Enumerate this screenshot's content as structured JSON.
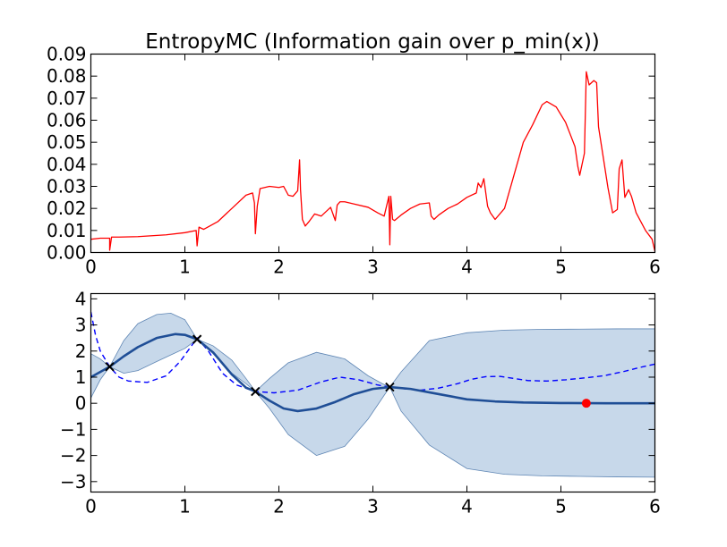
{
  "title": "EntropyMC (Information gain over p_min(x))",
  "colors": {
    "acquisition": "#ff0000",
    "mean": "#1f4e96",
    "band_fill": "#c7d8ea",
    "band_edge": "#5f86b4",
    "dashed": "#0000ff",
    "observation": "#000000",
    "next_point": "#ff0000"
  },
  "chart_data": [
    {
      "type": "line",
      "title": "EntropyMC (Information gain over p_min(x))",
      "xlabel": "",
      "ylabel": "",
      "xlim": [
        0,
        6
      ],
      "ylim": [
        0,
        0.09
      ],
      "xticks": [
        "0",
        "1",
        "2",
        "3",
        "4",
        "5",
        "6"
      ],
      "yticks": [
        "0.00",
        "0.01",
        "0.02",
        "0.03",
        "0.04",
        "0.05",
        "0.06",
        "0.07",
        "0.08",
        "0.09"
      ],
      "grid": false,
      "series": [
        {
          "x": [
            0.0,
            0.1,
            0.2,
            0.2,
            0.22,
            0.3,
            0.5,
            0.8,
            1.0,
            1.12,
            1.13,
            1.15,
            1.2,
            1.35,
            1.5,
            1.65,
            1.72,
            1.74,
            1.75,
            1.77,
            1.8,
            1.9,
            2.0,
            2.05,
            2.1,
            2.15,
            2.2,
            2.22,
            2.23,
            2.25,
            2.28,
            2.32,
            2.38,
            2.45,
            2.55,
            2.6,
            2.62,
            2.65,
            2.7,
            2.8,
            2.95,
            3.05,
            3.12,
            3.17,
            3.18,
            3.19,
            3.21,
            3.23,
            3.3,
            3.4,
            3.5,
            3.6,
            3.62,
            3.65,
            3.7,
            3.8,
            3.9,
            4.0,
            4.1,
            4.12,
            4.15,
            4.18,
            4.22,
            4.25,
            4.3,
            4.4,
            4.5,
            4.6,
            4.7,
            4.8,
            4.85,
            4.95,
            5.05,
            5.15,
            5.18,
            5.2,
            5.25,
            5.27,
            5.3,
            5.35,
            5.38,
            5.4,
            5.5,
            5.55,
            5.6,
            5.62,
            5.65,
            5.68,
            5.72,
            5.75,
            5.8,
            5.9,
            5.97,
            6.0
          ],
          "y": [
            0.006,
            0.0065,
            0.0065,
            0.001,
            0.007,
            0.007,
            0.0072,
            0.008,
            0.009,
            0.01,
            0.003,
            0.0115,
            0.0105,
            0.014,
            0.02,
            0.026,
            0.027,
            0.0225,
            0.0085,
            0.021,
            0.029,
            0.03,
            0.0295,
            0.03,
            0.026,
            0.0255,
            0.028,
            0.042,
            0.0285,
            0.015,
            0.012,
            0.014,
            0.0175,
            0.0165,
            0.0205,
            0.0145,
            0.0215,
            0.023,
            0.023,
            0.022,
            0.0205,
            0.018,
            0.0165,
            0.0255,
            0.0035,
            0.0255,
            0.015,
            0.0145,
            0.017,
            0.02,
            0.022,
            0.0225,
            0.0165,
            0.015,
            0.017,
            0.02,
            0.022,
            0.025,
            0.027,
            0.0315,
            0.0295,
            0.0335,
            0.021,
            0.018,
            0.015,
            0.02,
            0.035,
            0.05,
            0.058,
            0.067,
            0.0685,
            0.066,
            0.059,
            0.048,
            0.039,
            0.035,
            0.045,
            0.082,
            0.076,
            0.078,
            0.077,
            0.057,
            0.0295,
            0.018,
            0.0195,
            0.038,
            0.042,
            0.025,
            0.0285,
            0.0255,
            0.018,
            0.01,
            0.006,
            0.0005
          ]
        }
      ]
    },
    {
      "type": "line",
      "xlabel": "",
      "ylabel": "",
      "xlim": [
        0,
        6
      ],
      "ylim": [
        -3.4,
        4.2
      ],
      "xticks": [
        "0",
        "1",
        "2",
        "3",
        "4",
        "5",
        "6"
      ],
      "yticks": [
        "−3",
        "−2",
        "−1",
        "0",
        "1",
        "2",
        "3",
        "4"
      ],
      "grid": false,
      "band": {
        "x": [
          0.0,
          0.1,
          0.2,
          0.35,
          0.5,
          0.7,
          0.85,
          1.0,
          1.13,
          1.3,
          1.5,
          1.65,
          1.75,
          1.9,
          2.1,
          2.4,
          2.7,
          2.95,
          3.1,
          3.18,
          3.3,
          3.6,
          4.0,
          4.4,
          4.8,
          5.2,
          5.6,
          6.0
        ],
        "upper": [
          1.9,
          1.7,
          1.4,
          2.4,
          3.05,
          3.4,
          3.45,
          3.2,
          2.45,
          2.2,
          1.65,
          0.95,
          0.45,
          0.95,
          1.55,
          1.95,
          1.7,
          1.05,
          0.75,
          0.62,
          1.2,
          2.4,
          2.7,
          2.8,
          2.83,
          2.84,
          2.85,
          2.85
        ],
        "lower": [
          0.2,
          0.9,
          1.4,
          1.15,
          1.25,
          1.6,
          1.85,
          2.1,
          2.45,
          1.9,
          1.15,
          0.75,
          0.45,
          -0.2,
          -1.2,
          -2.0,
          -1.65,
          -0.6,
          0.2,
          0.62,
          -0.3,
          -1.6,
          -2.5,
          -2.72,
          -2.78,
          -2.8,
          -2.82,
          -2.83
        ]
      },
      "series": [
        {
          "style": "solid",
          "x": [
            0.0,
            0.1,
            0.2,
            0.35,
            0.5,
            0.7,
            0.9,
            1.0,
            1.13,
            1.3,
            1.5,
            1.65,
            1.75,
            1.9,
            2.05,
            2.2,
            2.4,
            2.6,
            2.8,
            3.0,
            3.18,
            3.4,
            3.7,
            4.0,
            4.3,
            4.6,
            5.0,
            5.5,
            6.0
          ],
          "y": [
            1.0,
            1.2,
            1.4,
            1.8,
            2.15,
            2.5,
            2.65,
            2.62,
            2.45,
            1.95,
            1.1,
            0.6,
            0.45,
            0.1,
            -0.2,
            -0.3,
            -0.2,
            0.05,
            0.35,
            0.55,
            0.62,
            0.55,
            0.35,
            0.15,
            0.07,
            0.03,
            0.01,
            0.0,
            0.0
          ]
        },
        {
          "style": "dashed",
          "x": [
            0.0,
            0.05,
            0.1,
            0.2,
            0.3,
            0.4,
            0.6,
            0.8,
            0.95,
            1.13,
            1.25,
            1.4,
            1.55,
            1.75,
            1.95,
            2.2,
            2.45,
            2.65,
            2.85,
            3.05,
            3.18,
            3.35,
            3.5,
            3.7,
            3.9,
            4.05,
            4.2,
            4.35,
            4.5,
            4.65,
            4.85,
            5.05,
            5.25,
            5.45,
            5.65,
            5.85,
            6.0
          ],
          "y": [
            3.5,
            2.6,
            2.0,
            1.4,
            1.0,
            0.85,
            0.8,
            1.05,
            1.6,
            2.5,
            2.0,
            1.15,
            0.7,
            0.45,
            0.4,
            0.5,
            0.82,
            1.0,
            0.9,
            0.7,
            0.62,
            0.55,
            0.5,
            0.58,
            0.75,
            0.92,
            1.02,
            1.03,
            0.95,
            0.87,
            0.85,
            0.9,
            0.97,
            1.05,
            1.2,
            1.38,
            1.5
          ]
        }
      ],
      "observations": [
        {
          "x": 0.2,
          "y": 1.4
        },
        {
          "x": 1.13,
          "y": 2.45
        },
        {
          "x": 1.75,
          "y": 0.45
        },
        {
          "x": 3.18,
          "y": 0.62
        }
      ],
      "next_point": {
        "x": 5.27,
        "y": 0.0
      }
    }
  ]
}
